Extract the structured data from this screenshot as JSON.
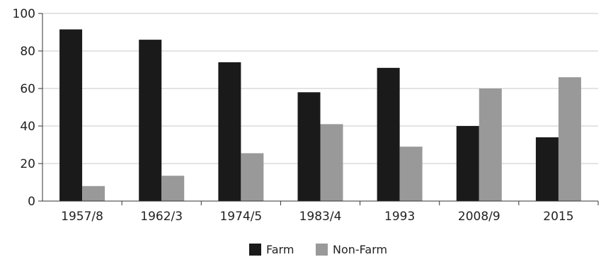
{
  "chart_data": {
    "type": "bar",
    "title": "",
    "xlabel": "",
    "ylabel": "",
    "categories": [
      "1957/8",
      "1962/3",
      "1974/5",
      "1983/4",
      "1993",
      "2008/9",
      "2015"
    ],
    "series": [
      {
        "name": "Farm",
        "color": "#1a1a1a",
        "values": [
          91.5,
          86,
          74,
          58,
          71,
          40,
          34
        ]
      },
      {
        "name": "Non-Farm",
        "color": "#999999",
        "values": [
          8,
          13.5,
          25.5,
          41,
          29,
          60,
          66
        ]
      }
    ],
    "ylim": [
      0,
      100
    ],
    "yticks": [
      0,
      20,
      40,
      60,
      80,
      100
    ],
    "grid": "horizontal",
    "legend": "bottom-center"
  }
}
